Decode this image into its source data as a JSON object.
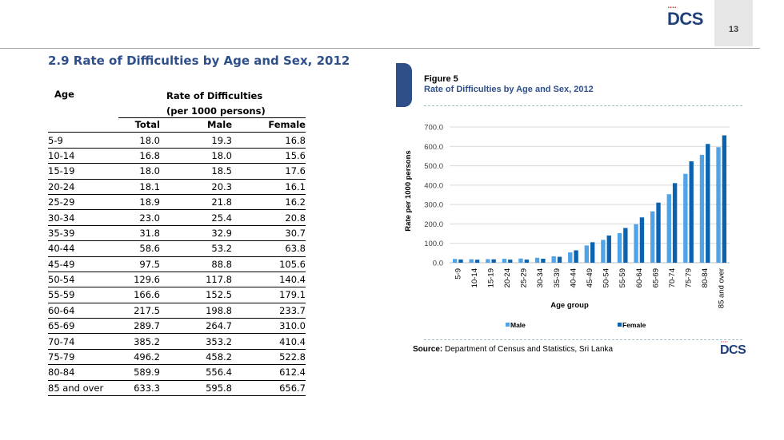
{
  "header": {
    "logo_text": "DCS",
    "logo_dots": "••••",
    "page_number": "13"
  },
  "section_title": "2.9  Rate of Difficulties by Age and  Sex, 2012",
  "table": {
    "age_header": "Age",
    "rate_header_line1": "Rate of Difficulties",
    "rate_header_line2": "(per 1000 persons)",
    "columns": [
      "Total",
      "Male",
      "Female"
    ],
    "rows": [
      {
        "age": "5-9",
        "total": "18.0",
        "male": "19.3",
        "female": "16.8"
      },
      {
        "age": "10-14",
        "total": "16.8",
        "male": "18.0",
        "female": "15.6"
      },
      {
        "age": "15-19",
        "total": "18.0",
        "male": "18.5",
        "female": "17.6"
      },
      {
        "age": "20-24",
        "total": "18.1",
        "male": "20.3",
        "female": "16.1"
      },
      {
        "age": "25-29",
        "total": "18.9",
        "male": "21.8",
        "female": "16.2"
      },
      {
        "age": "30-34",
        "total": "23.0",
        "male": "25.4",
        "female": "20.8"
      },
      {
        "age": "35-39",
        "total": "31.8",
        "male": "32.9",
        "female": "30.7"
      },
      {
        "age": "40-44",
        "total": "58.6",
        "male": "53.2",
        "female": "63.8"
      },
      {
        "age": "45-49",
        "total": "97.5",
        "male": "88.8",
        "female": "105.6"
      },
      {
        "age": "50-54",
        "total": "129.6",
        "male": "117.8",
        "female": "140.4"
      },
      {
        "age": "55-59",
        "total": "166.6",
        "male": "152.5",
        "female": "179.1"
      },
      {
        "age": "60-64",
        "total": "217.5",
        "male": "198.8",
        "female": "233.7"
      },
      {
        "age": "65-69",
        "total": "289.7",
        "male": "264.7",
        "female": "310.0"
      },
      {
        "age": "70-74",
        "total": "385.2",
        "male": "353.2",
        "female": "410.4"
      },
      {
        "age": "75-79",
        "total": "496.2",
        "male": "458.2",
        "female": "522.8"
      },
      {
        "age": "80-84",
        "total": "589.9",
        "male": "556.4",
        "female": "612.4"
      },
      {
        "age": "85 and over",
        "total": "633.3",
        "male": "595.8",
        "female": "656.7"
      }
    ]
  },
  "figure": {
    "number": "Figure 5",
    "title": "Rate of Difficulties by Age and Sex, 2012",
    "source_label": "Source:",
    "source_text": "Department  of Census and Statistics, Sri Lanka"
  },
  "chart_data": {
    "type": "bar",
    "title": "",
    "xlabel": "Age group",
    "ylabel": "Rate per 1000 persons",
    "ylim": [
      0,
      700
    ],
    "yticks": [
      "0.0",
      "100.0",
      "200.0",
      "300.0",
      "400.0",
      "500.0",
      "600.0",
      "700.0"
    ],
    "grid": true,
    "legend_position": "bottom",
    "categories": [
      "5-9",
      "10-14",
      "15-19",
      "20-24",
      "25-29",
      "30-34",
      "35-39",
      "40-44",
      "45-49",
      "50-54",
      "55-59",
      "60-64",
      "65-69",
      "70-74",
      "75-79",
      "80-84",
      "85 and over"
    ],
    "series": [
      {
        "name": "Male",
        "color": "#4fa3e6",
        "values": [
          19.3,
          18.0,
          18.5,
          20.3,
          21.8,
          25.4,
          32.9,
          53.2,
          88.8,
          117.8,
          152.5,
          198.8,
          264.7,
          353.2,
          458.2,
          556.4,
          595.8
        ]
      },
      {
        "name": "Female",
        "color": "#0b63b0",
        "values": [
          16.8,
          15.6,
          17.6,
          16.1,
          16.2,
          20.8,
          30.7,
          63.8,
          105.6,
          140.4,
          179.1,
          233.7,
          310.0,
          410.4,
          522.8,
          612.4,
          656.7
        ]
      }
    ]
  }
}
